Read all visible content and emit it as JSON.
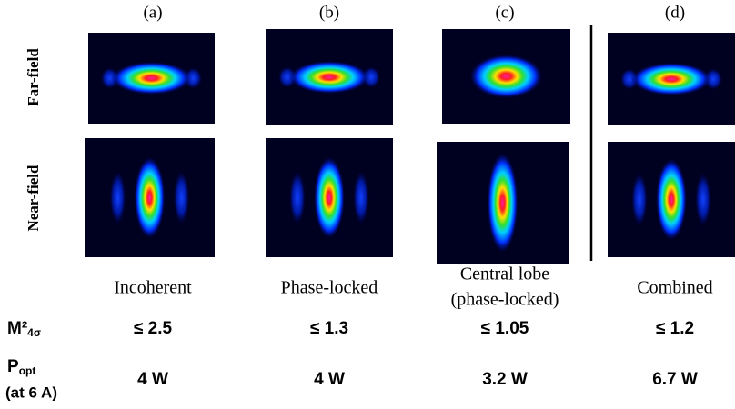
{
  "columns": [
    {
      "label": "(a)",
      "caption": [
        "Incoherent"
      ],
      "m2": "≤ 2.5",
      "power": "4 W"
    },
    {
      "label": "(b)",
      "caption": [
        "Phase-locked"
      ],
      "m2": "≤ 1.3",
      "power": "4 W"
    },
    {
      "label": "(c)",
      "caption": [
        "Central lobe",
        "(phase-locked)"
      ],
      "m2": "≤ 1.05",
      "power": "3.2 W"
    },
    {
      "label": "(d)",
      "caption": [
        "Combined"
      ],
      "m2": "≤ 1.2",
      "power": "6.7 W"
    }
  ],
  "rows": [
    "Far-field",
    "Near-field"
  ],
  "m2_label": {
    "main": "M²",
    "sub": "4σ"
  },
  "power_label": {
    "main": "P",
    "sub": "opt",
    "note": "(at 6 A)"
  }
}
